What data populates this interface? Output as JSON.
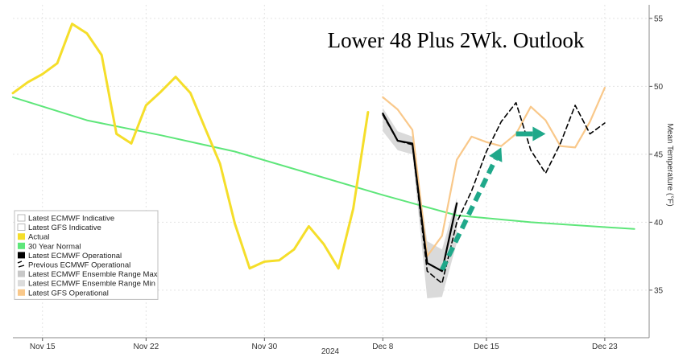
{
  "chart_data": {
    "type": "line",
    "title": "Lower 48 Plus 2Wk. Outlook",
    "xlabel": "2024",
    "ylabel": "Mean Temperature (°F)",
    "x_start": "2024-11-13",
    "x_end": "2024-12-26",
    "ylim": [
      31.5,
      56
    ],
    "y_ticks": [
      35,
      40,
      45,
      50,
      55
    ],
    "x_ticks": [
      {
        "date": "2024-11-15",
        "label": "Nov 15"
      },
      {
        "date": "2024-11-22",
        "label": "Nov 22"
      },
      {
        "date": "2024-11-30",
        "label": "Nov 30"
      },
      {
        "date": "2024-12-08",
        "label": "Dec 8"
      },
      {
        "date": "2024-12-15",
        "label": "Dec 15"
      },
      {
        "date": "2024-12-23",
        "label": "Dec 23"
      }
    ],
    "legend": [
      {
        "label": "Latest ECMWF Indicative",
        "swatch": "empty"
      },
      {
        "label": "Latest GFS Indicative",
        "swatch": "empty"
      },
      {
        "label": "Actual",
        "swatch": "#f5de2a"
      },
      {
        "label": "30 Year Normal",
        "swatch": "#5ee67a"
      },
      {
        "label": "Latest ECMWF Operational",
        "swatch": "#000000"
      },
      {
        "label": "Previous ECMWF Operational",
        "swatch": "dashed"
      },
      {
        "label": "Latest ECMWF Ensemble Range Max",
        "swatch": "#c8c8c8"
      },
      {
        "label": "Latest ECMWF Ensemble Range Min",
        "swatch": "#dcdcdc"
      },
      {
        "label": "Latest GFS Operational",
        "swatch": "#f9c88a"
      }
    ],
    "legend_position": "bottom-left",
    "series": [
      {
        "name": "Actual",
        "color": "#f5de2a",
        "points": [
          [
            "2024-11-13",
            49.5
          ],
          [
            "2024-11-14",
            50.3
          ],
          [
            "2024-11-15",
            50.9
          ],
          [
            "2024-11-16",
            51.7
          ],
          [
            "2024-11-17",
            54.6
          ],
          [
            "2024-11-18",
            53.9
          ],
          [
            "2024-11-19",
            52.3
          ],
          [
            "2024-11-20",
            46.5
          ],
          [
            "2024-11-21",
            45.8
          ],
          [
            "2024-11-22",
            48.6
          ],
          [
            "2024-11-23",
            49.6
          ],
          [
            "2024-11-24",
            50.7
          ],
          [
            "2024-11-25",
            49.5
          ],
          [
            "2024-11-26",
            46.9
          ],
          [
            "2024-11-27",
            44.3
          ],
          [
            "2024-11-28",
            39.9
          ],
          [
            "2024-11-29",
            36.6
          ],
          [
            "2024-11-30",
            37.1
          ],
          [
            "2024-12-01",
            37.2
          ],
          [
            "2024-12-02",
            38.0
          ],
          [
            "2024-12-03",
            39.7
          ],
          [
            "2024-12-04",
            38.4
          ],
          [
            "2024-12-05",
            36.6
          ],
          [
            "2024-12-06",
            41.0
          ],
          [
            "2024-12-07",
            48.1
          ]
        ]
      },
      {
        "name": "30 Year Normal",
        "color": "#5ee67a",
        "points": [
          [
            "2024-11-13",
            49.2
          ],
          [
            "2024-11-18",
            47.5
          ],
          [
            "2024-11-23",
            46.4
          ],
          [
            "2024-11-28",
            45.2
          ],
          [
            "2024-12-03",
            43.6
          ],
          [
            "2024-12-08",
            42.0
          ],
          [
            "2024-12-13",
            40.5
          ],
          [
            "2024-12-18",
            40.0
          ],
          [
            "2024-12-25",
            39.5
          ]
        ]
      },
      {
        "name": "Latest ECMWF Operational",
        "color": "#000000",
        "points": [
          [
            "2024-12-08",
            48.0
          ],
          [
            "2024-12-09",
            46.0
          ],
          [
            "2024-12-10",
            45.8
          ],
          [
            "2024-12-11",
            37.0
          ],
          [
            "2024-12-12",
            36.4
          ],
          [
            "2024-12-13",
            41.4
          ]
        ]
      },
      {
        "name": "Previous ECMWF Operational",
        "color": "#000000",
        "points": [
          [
            "2024-12-08",
            47.9
          ],
          [
            "2024-12-09",
            46.0
          ],
          [
            "2024-12-10",
            45.7
          ],
          [
            "2024-12-11",
            36.4
          ],
          [
            "2024-12-12",
            35.5
          ],
          [
            "2024-12-13",
            40.0
          ],
          [
            "2024-12-14",
            42.3
          ],
          [
            "2024-12-15",
            45.2
          ],
          [
            "2024-12-16",
            47.4
          ],
          [
            "2024-12-17",
            48.8
          ],
          [
            "2024-12-18",
            45.3
          ],
          [
            "2024-12-19",
            43.6
          ],
          [
            "2024-12-20",
            45.8
          ],
          [
            "2024-12-21",
            48.6
          ],
          [
            "2024-12-22",
            46.5
          ],
          [
            "2024-12-23",
            47.3
          ]
        ]
      },
      {
        "name": "Latest GFS Operational",
        "color": "#f9c88a",
        "points": [
          [
            "2024-12-08",
            49.2
          ],
          [
            "2024-12-09",
            48.3
          ],
          [
            "2024-12-10",
            46.8
          ],
          [
            "2024-12-11",
            37.5
          ],
          [
            "2024-12-12",
            39.0
          ],
          [
            "2024-12-13",
            44.6
          ],
          [
            "2024-12-14",
            46.3
          ],
          [
            "2024-12-15",
            45.9
          ],
          [
            "2024-12-16",
            45.6
          ],
          [
            "2024-12-17",
            46.5
          ],
          [
            "2024-12-18",
            48.5
          ],
          [
            "2024-12-19",
            47.5
          ],
          [
            "2024-12-20",
            45.6
          ],
          [
            "2024-12-21",
            45.5
          ],
          [
            "2024-12-22",
            47.4
          ],
          [
            "2024-12-23",
            49.9
          ]
        ]
      }
    ],
    "ensemble_range": {
      "name": "Latest ECMWF Ensemble Range",
      "color": "#d6d6d6",
      "dates": [
        "2024-12-08",
        "2024-12-09",
        "2024-12-10",
        "2024-12-11",
        "2024-12-12",
        "2024-12-13"
      ],
      "max": [
        48.4,
        46.7,
        46.3,
        38.6,
        38.0,
        41.8
      ],
      "min": [
        46.7,
        45.3,
        45.0,
        34.4,
        34.5,
        38.5
      ]
    },
    "annotations": [
      {
        "type": "arrow",
        "style": "dashed",
        "color": "#1fa88a",
        "from": [
          "2024-12-12",
          36.5
        ],
        "to": [
          "2024-12-16",
          45.5
        ]
      },
      {
        "type": "arrow",
        "style": "solid",
        "color": "#1fa88a",
        "from": [
          "2024-12-17",
          46.5
        ],
        "to": [
          "2024-12-19",
          46.5
        ]
      }
    ]
  }
}
